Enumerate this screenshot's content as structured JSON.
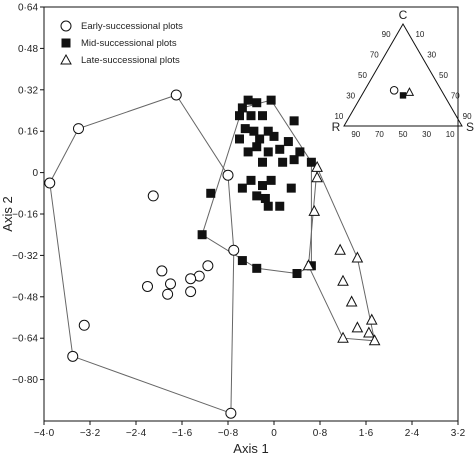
{
  "chart_data": {
    "type": "scatter",
    "xlabel": "Axis 1",
    "ylabel": "Axis 2",
    "xlim": [
      -4.0,
      3.2
    ],
    "ylim": [
      -0.96,
      0.64
    ],
    "x_ticks": [
      -4.0,
      -3.2,
      -2.4,
      -1.6,
      -0.8,
      0,
      0.8,
      1.6,
      2.4,
      3.2
    ],
    "x_tick_labels": [
      "−4·0",
      "−3·2",
      "−2·4",
      "−1·6",
      "−0·8",
      "0",
      "0·8",
      "1·6",
      "2·4",
      "3·2"
    ],
    "y_ticks": [
      0.64,
      0.48,
      0.32,
      0.16,
      0,
      -0.16,
      -0.32,
      -0.48,
      -0.64,
      -0.8
    ],
    "y_tick_labels": [
      "0·64",
      "0·48",
      "0·32",
      "0·16",
      "0",
      "−0·16",
      "−0·32",
      "−0·48",
      "−0·64",
      "−0·80"
    ],
    "legend_position": "top-left",
    "series": [
      {
        "name": "Early-successional plots",
        "marker": "circle",
        "points": [
          [
            -3.9,
            -0.04
          ],
          [
            -3.4,
            0.17
          ],
          [
            -1.7,
            0.3
          ],
          [
            -0.8,
            -0.01
          ],
          [
            -2.1,
            -0.09
          ],
          [
            -3.5,
            -0.71
          ],
          [
            -3.3,
            -0.59
          ],
          [
            -0.7,
            -0.3
          ],
          [
            -0.75,
            -0.93
          ],
          [
            -1.15,
            -0.36
          ],
          [
            -1.3,
            -0.4
          ],
          [
            -1.45,
            -0.46
          ],
          [
            -1.45,
            -0.41
          ],
          [
            -1.8,
            -0.43
          ],
          [
            -1.95,
            -0.38
          ],
          [
            -1.85,
            -0.47
          ],
          [
            -2.2,
            -0.44
          ]
        ],
        "hull": [
          [
            -1.7,
            0.3
          ],
          [
            -0.8,
            -0.01
          ],
          [
            -0.7,
            -0.3
          ],
          [
            -0.75,
            -0.93
          ],
          [
            -3.5,
            -0.71
          ],
          [
            -3.9,
            -0.04
          ],
          [
            -3.4,
            0.17
          ]
        ]
      },
      {
        "name": "Mid-successional plots",
        "marker": "square",
        "points": [
          [
            -0.45,
            0.28
          ],
          [
            -0.3,
            0.27
          ],
          [
            -0.05,
            0.28
          ],
          [
            -0.55,
            0.25
          ],
          [
            -0.6,
            0.22
          ],
          [
            -0.4,
            0.22
          ],
          [
            -0.2,
            0.22
          ],
          [
            0.35,
            0.2
          ],
          [
            -0.5,
            0.17
          ],
          [
            -0.35,
            0.16
          ],
          [
            -0.6,
            0.13
          ],
          [
            -0.25,
            0.13
          ],
          [
            0.0,
            0.14
          ],
          [
            -0.1,
            0.16
          ],
          [
            0.25,
            0.12
          ],
          [
            -0.45,
            0.08
          ],
          [
            -0.3,
            0.1
          ],
          [
            -0.1,
            0.08
          ],
          [
            0.1,
            0.09
          ],
          [
            0.45,
            0.08
          ],
          [
            -0.2,
            0.04
          ],
          [
            0.15,
            0.04
          ],
          [
            0.35,
            0.05
          ],
          [
            0.65,
            0.04
          ],
          [
            -0.4,
            -0.03
          ],
          [
            -0.2,
            -0.05
          ],
          [
            -0.05,
            -0.03
          ],
          [
            -0.3,
            -0.09
          ],
          [
            -0.15,
            -0.1
          ],
          [
            -0.55,
            -0.06
          ],
          [
            0.3,
            -0.06
          ],
          [
            -0.1,
            -0.13
          ],
          [
            -1.1,
            -0.08
          ],
          [
            -1.25,
            -0.24
          ],
          [
            -0.55,
            -0.34
          ],
          [
            -0.3,
            -0.37
          ],
          [
            0.4,
            -0.39
          ],
          [
            0.65,
            -0.36
          ],
          [
            0.1,
            -0.13
          ]
        ],
        "hull": [
          [
            -0.55,
            0.25
          ],
          [
            -0.05,
            0.28
          ],
          [
            0.65,
            0.04
          ],
          [
            0.65,
            -0.36
          ],
          [
            0.4,
            -0.39
          ],
          [
            -0.3,
            -0.37
          ],
          [
            -1.25,
            -0.24
          ]
        ]
      },
      {
        "name": "Late-successional plots",
        "marker": "triangle",
        "points": [
          [
            0.75,
            0.02
          ],
          [
            0.75,
            -0.02
          ],
          [
            0.7,
            -0.15
          ],
          [
            0.6,
            -0.36
          ],
          [
            1.15,
            -0.3
          ],
          [
            1.45,
            -0.33
          ],
          [
            1.2,
            -0.42
          ],
          [
            1.35,
            -0.5
          ],
          [
            1.7,
            -0.57
          ],
          [
            1.45,
            -0.6
          ],
          [
            1.2,
            -0.64
          ],
          [
            1.65,
            -0.62
          ],
          [
            1.75,
            -0.65
          ]
        ],
        "hull": [
          [
            0.75,
            0.02
          ],
          [
            1.45,
            -0.33
          ],
          [
            1.75,
            -0.65
          ],
          [
            1.2,
            -0.64
          ],
          [
            0.6,
            -0.36
          ]
        ]
      }
    ],
    "inset": {
      "type": "ternary",
      "corners": [
        "C",
        "R",
        "S"
      ],
      "tick_labels": [
        "10",
        "30",
        "50",
        "70",
        "90"
      ],
      "points": [
        {
          "marker": "circle",
          "C": 35,
          "R": 40,
          "S": 25
        },
        {
          "marker": "square",
          "C": 30,
          "R": 35,
          "S": 35
        },
        {
          "marker": "triangle",
          "C": 33,
          "R": 28,
          "S": 39
        }
      ]
    }
  }
}
